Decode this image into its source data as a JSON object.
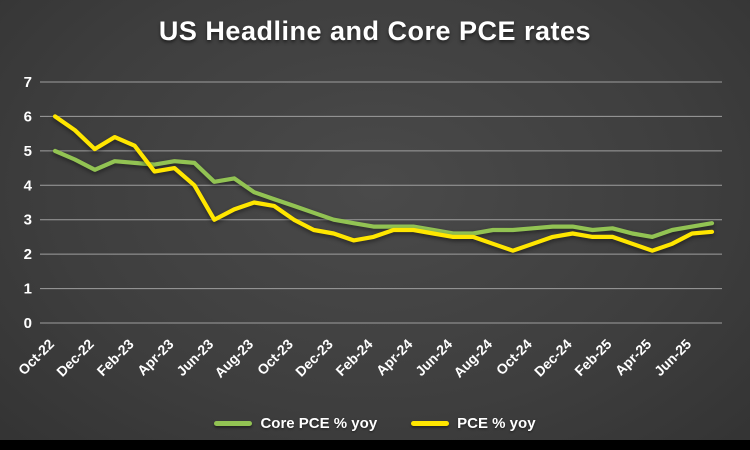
{
  "chart_data": {
    "type": "line",
    "title": "US Headline and Core PCE rates",
    "xlabel": "",
    "ylabel": "",
    "ylim": [
      0,
      7
    ],
    "y_ticks": [
      0,
      1,
      2,
      3,
      4,
      5,
      6,
      7
    ],
    "grid": true,
    "legend_position": "bottom",
    "tick_every": 2,
    "x": [
      "Oct-22",
      "Nov-22",
      "Dec-22",
      "Jan-23",
      "Feb-23",
      "Mar-23",
      "Apr-23",
      "May-23",
      "Jun-23",
      "Jul-23",
      "Aug-23",
      "Sep-23",
      "Oct-23",
      "Nov-23",
      "Dec-23",
      "Jan-24",
      "Feb-24",
      "Mar-24",
      "Apr-24",
      "May-24",
      "Jun-24",
      "Jul-24",
      "Aug-24",
      "Sep-24",
      "Oct-24",
      "Nov-24",
      "Dec-24",
      "Jan-25",
      "Feb-25",
      "Mar-25",
      "Apr-25",
      "May-25",
      "Jun-25",
      "Jul-25"
    ],
    "x_tick_labels": [
      "Oct-22",
      "Dec-22",
      "Feb-23",
      "Apr-23",
      "Jun-23",
      "Aug-23",
      "Oct-23",
      "Dec-23",
      "Feb-24",
      "Apr-24",
      "Jun-24",
      "Aug-24",
      "Oct-24",
      "Dec-24",
      "Feb-25",
      "Apr-25",
      "Jun-25"
    ],
    "series": [
      {
        "name": "Core PCE % yoy",
        "color": "#92c353",
        "values": [
          5.0,
          4.75,
          4.45,
          4.7,
          4.65,
          4.6,
          4.7,
          4.65,
          4.1,
          4.2,
          3.8,
          3.6,
          3.4,
          3.2,
          3.0,
          2.9,
          2.8,
          2.8,
          2.8,
          2.7,
          2.6,
          2.6,
          2.7,
          2.7,
          2.75,
          2.8,
          2.8,
          2.7,
          2.75,
          2.6,
          2.5,
          2.7,
          2.8,
          2.9
        ]
      },
      {
        "name": "PCE % yoy",
        "color": "#ffe600",
        "values": [
          6.0,
          5.6,
          5.05,
          5.4,
          5.15,
          4.4,
          4.5,
          4.0,
          3.0,
          3.3,
          3.5,
          3.4,
          3.0,
          2.7,
          2.6,
          2.4,
          2.5,
          2.7,
          2.7,
          2.6,
          2.5,
          2.5,
          2.3,
          2.1,
          2.3,
          2.5,
          2.6,
          2.5,
          2.5,
          2.3,
          2.1,
          2.3,
          2.6,
          2.65
        ]
      }
    ],
    "colors": {
      "background": "#3f3f3f",
      "grid": "#9e9e9e",
      "text": "#ffffff"
    }
  }
}
